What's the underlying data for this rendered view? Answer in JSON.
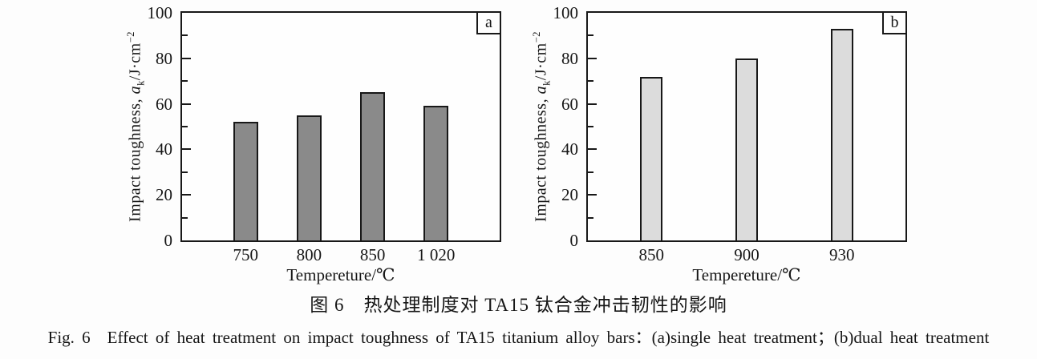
{
  "figure": {
    "captions": {
      "chinese": "图 6 热处理制度对 TA15 钛合金冲击韧性的影响",
      "english": "Fig. 6 Effect of heat treatment on impact toughness of TA15 titanium alloy bars：(a)single heat treatment；(b)dual heat treatment"
    }
  },
  "chart_data": [
    {
      "id": "a",
      "type": "bar",
      "panel_label": "a",
      "categories": [
        "750",
        "800",
        "850",
        "1 020"
      ],
      "values": [
        52,
        55,
        65,
        59
      ],
      "xlabel": "Tempereture/℃",
      "ylabel": "Impact toughness, aₖ/J·cm⁻²",
      "ylabel_parts": {
        "before": "Impact toughness, ",
        "symbol": "a",
        "subscript": "k",
        "after": "/J·cm",
        "superscript": "−2"
      },
      "ylim": [
        0,
        100
      ],
      "yticks": [
        0,
        20,
        40,
        60,
        80,
        100
      ],
      "minor_yticks": [
        10,
        30,
        50,
        70,
        90
      ],
      "bar_color": "#8a8a8a",
      "bar_edge_color": "#181818",
      "bar_centers_frac": [
        0.2,
        0.4,
        0.6,
        0.8
      ],
      "grid": false,
      "legend": "none"
    },
    {
      "id": "b",
      "type": "bar",
      "panel_label": "b",
      "categories": [
        "850",
        "900",
        "930"
      ],
      "values": [
        72,
        80,
        93
      ],
      "xlabel": "Tempereture/℃",
      "ylabel": "Impact toughness, aₖ/J·cm⁻²",
      "ylabel_parts": {
        "before": "Impact toughness, ",
        "symbol": "a",
        "subscript": "k",
        "after": "/J·cm",
        "superscript": "−2"
      },
      "ylim": [
        0,
        100
      ],
      "yticks": [
        0,
        20,
        40,
        60,
        80,
        100
      ],
      "minor_yticks": [
        10,
        30,
        50,
        70,
        90
      ],
      "bar_color": "#dcdcdc",
      "bar_edge_color": "#181818",
      "bar_centers_frac": [
        0.2,
        0.5,
        0.8
      ],
      "grid": false,
      "legend": "none"
    }
  ]
}
